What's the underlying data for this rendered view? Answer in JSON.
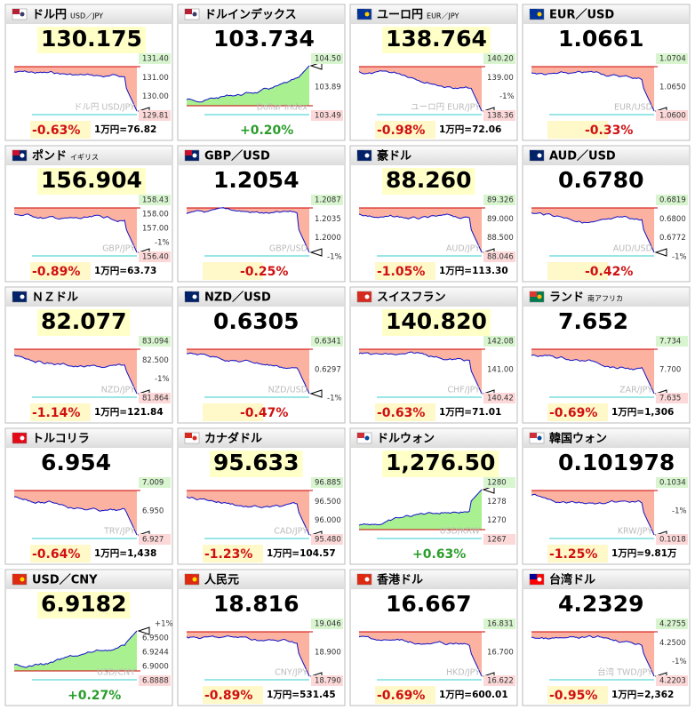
{
  "tiles": [
    {
      "name": "ドル円",
      "sub": "USD／JPY",
      "price": "130.175",
      "highlight": true,
      "labels": [
        "131.40",
        "131.00",
        "130.00",
        "129.81"
      ],
      "watermark": "ドル円 USD/JPY",
      "change": "-0.63%",
      "yen": "1万円=76.82"
    },
    {
      "name": "ドルインデックス",
      "price": "103.734",
      "highlight": false,
      "labels": [
        "104.50",
        "103.89",
        "103.49"
      ],
      "watermark": "Dollar Index",
      "change": "+0.20%"
    },
    {
      "name": "ユーロ円",
      "sub": "EUR／JPY",
      "price": "138.764",
      "highlight": true,
      "labels": [
        "140.20",
        "139.00",
        "-1%",
        "138.36"
      ],
      "watermark": "ユーロ円 EUR/JPY",
      "change": "-0.98%",
      "yen": "1万円=72.06"
    },
    {
      "name": "EUR／USD",
      "price": "1.0661",
      "highlight": false,
      "labels": [
        "1.0704",
        "1.0650",
        "1.0600"
      ],
      "watermark": "EUR/USD",
      "change": "-0.33%"
    },
    {
      "name": "ポンド",
      "sub": "イギリス",
      "price": "156.904",
      "highlight": true,
      "labels": [
        "158.43",
        "158.00",
        "157.00",
        "-1%",
        "156.40"
      ],
      "watermark": "GBP/JPY",
      "change": "-0.89%",
      "yen": "1万円=63.73"
    },
    {
      "name": "GBP／USD",
      "price": "1.2054",
      "highlight": false,
      "labels": [
        "1.2087",
        "1.2035",
        "1.2000",
        "-1%"
      ],
      "watermark": "GBP/USD",
      "change": "-0.25%"
    },
    {
      "name": "豪ドル",
      "price": "88.260",
      "highlight": true,
      "labels": [
        "89.326",
        "89.000",
        "88.500",
        "88.046"
      ],
      "watermark": "AUD/JPY",
      "change": "-1.05%",
      "yen": "1万円=113.30"
    },
    {
      "name": "AUD／USD",
      "price": "0.6780",
      "highlight": false,
      "labels": [
        "0.6819",
        "0.6800",
        "0.6772",
        "-1%"
      ],
      "watermark": "AUD/USD",
      "change": "-0.42%"
    },
    {
      "name": "ＮＺドル",
      "price": "82.077",
      "highlight": true,
      "labels": [
        "83.094",
        "82.500",
        "-1%",
        "81.864"
      ],
      "watermark": "NZD/JPY",
      "change": "-1.14%",
      "yen": "1万円=121.84"
    },
    {
      "name": "NZD／USD",
      "price": "0.6305",
      "highlight": false,
      "labels": [
        "0.6341",
        "0.6297",
        "-1%"
      ],
      "watermark": "NZD/USD",
      "change": "-0.47%"
    },
    {
      "name": "スイスフラン",
      "price": "140.820",
      "highlight": true,
      "labels": [
        "142.08",
        "141.00",
        "140.42"
      ],
      "watermark": "CHF/JPY",
      "change": "-0.63%",
      "yen": "1万円=71.01"
    },
    {
      "name": "ランド",
      "sub": "南アフリカ",
      "price": "7.652",
      "highlight": false,
      "labels": [
        "7.734",
        "7.700",
        "7.635"
      ],
      "watermark": "ZAR/JPY",
      "change": "-0.69%",
      "yen": "1万円=1,306"
    },
    {
      "name": "トルコリラ",
      "price": "6.954",
      "highlight": false,
      "labels": [
        "7.009",
        "6.950",
        "6.927"
      ],
      "watermark": "TRY/JPY",
      "change": "-0.64%",
      "yen": "1万円=1,438"
    },
    {
      "name": "カナダドル",
      "price": "95.633",
      "highlight": true,
      "labels": [
        "96.885",
        "96.500",
        "96.000",
        "95.480"
      ],
      "watermark": "CAD/JPY",
      "change": "-1.23%",
      "yen": "1万円=104.57"
    },
    {
      "name": "ドルウォン",
      "price": "1,276.50",
      "highlight": true,
      "labels": [
        "1280",
        "1278",
        "1270",
        "1267"
      ],
      "watermark": "USD/KRW",
      "change": "+0.63%"
    },
    {
      "name": "韓国ウォン",
      "price": "0.101978",
      "highlight": false,
      "labels": [
        "0.1034",
        "-1%",
        "0.1018"
      ],
      "watermark": "KRW/JPY",
      "change": "-1.25%",
      "yen": "1万円=9.81万"
    },
    {
      "name": "USD／CNY",
      "price": "6.9182",
      "highlight": true,
      "labels": [
        "+1%",
        "6.9500",
        "6.9244",
        "6.9000",
        "6.8888"
      ],
      "watermark": "USD/CNY",
      "change": "+0.27%"
    },
    {
      "name": "人民元",
      "price": "18.816",
      "highlight": false,
      "labels": [
        "19.046",
        "18.900",
        "18.790"
      ],
      "watermark": "CNY/JPY",
      "change": "-0.89%",
      "yen": "1万円=531.45"
    },
    {
      "name": "香港ドル",
      "price": "16.667",
      "highlight": false,
      "labels": [
        "16.831",
        "16.700",
        "16.622"
      ],
      "watermark": "HKD/JPY",
      "change": "-0.69%",
      "yen": "1万円=600.01"
    },
    {
      "name": "台湾ドル",
      "price": "4.2329",
      "highlight": false,
      "labels": [
        "4.2755",
        "4.2500",
        "-1%",
        "4.2203"
      ],
      "watermark": "台湾 TWD/JPY",
      "change": "-0.95%",
      "yen": "1万円=2,362"
    }
  ]
}
